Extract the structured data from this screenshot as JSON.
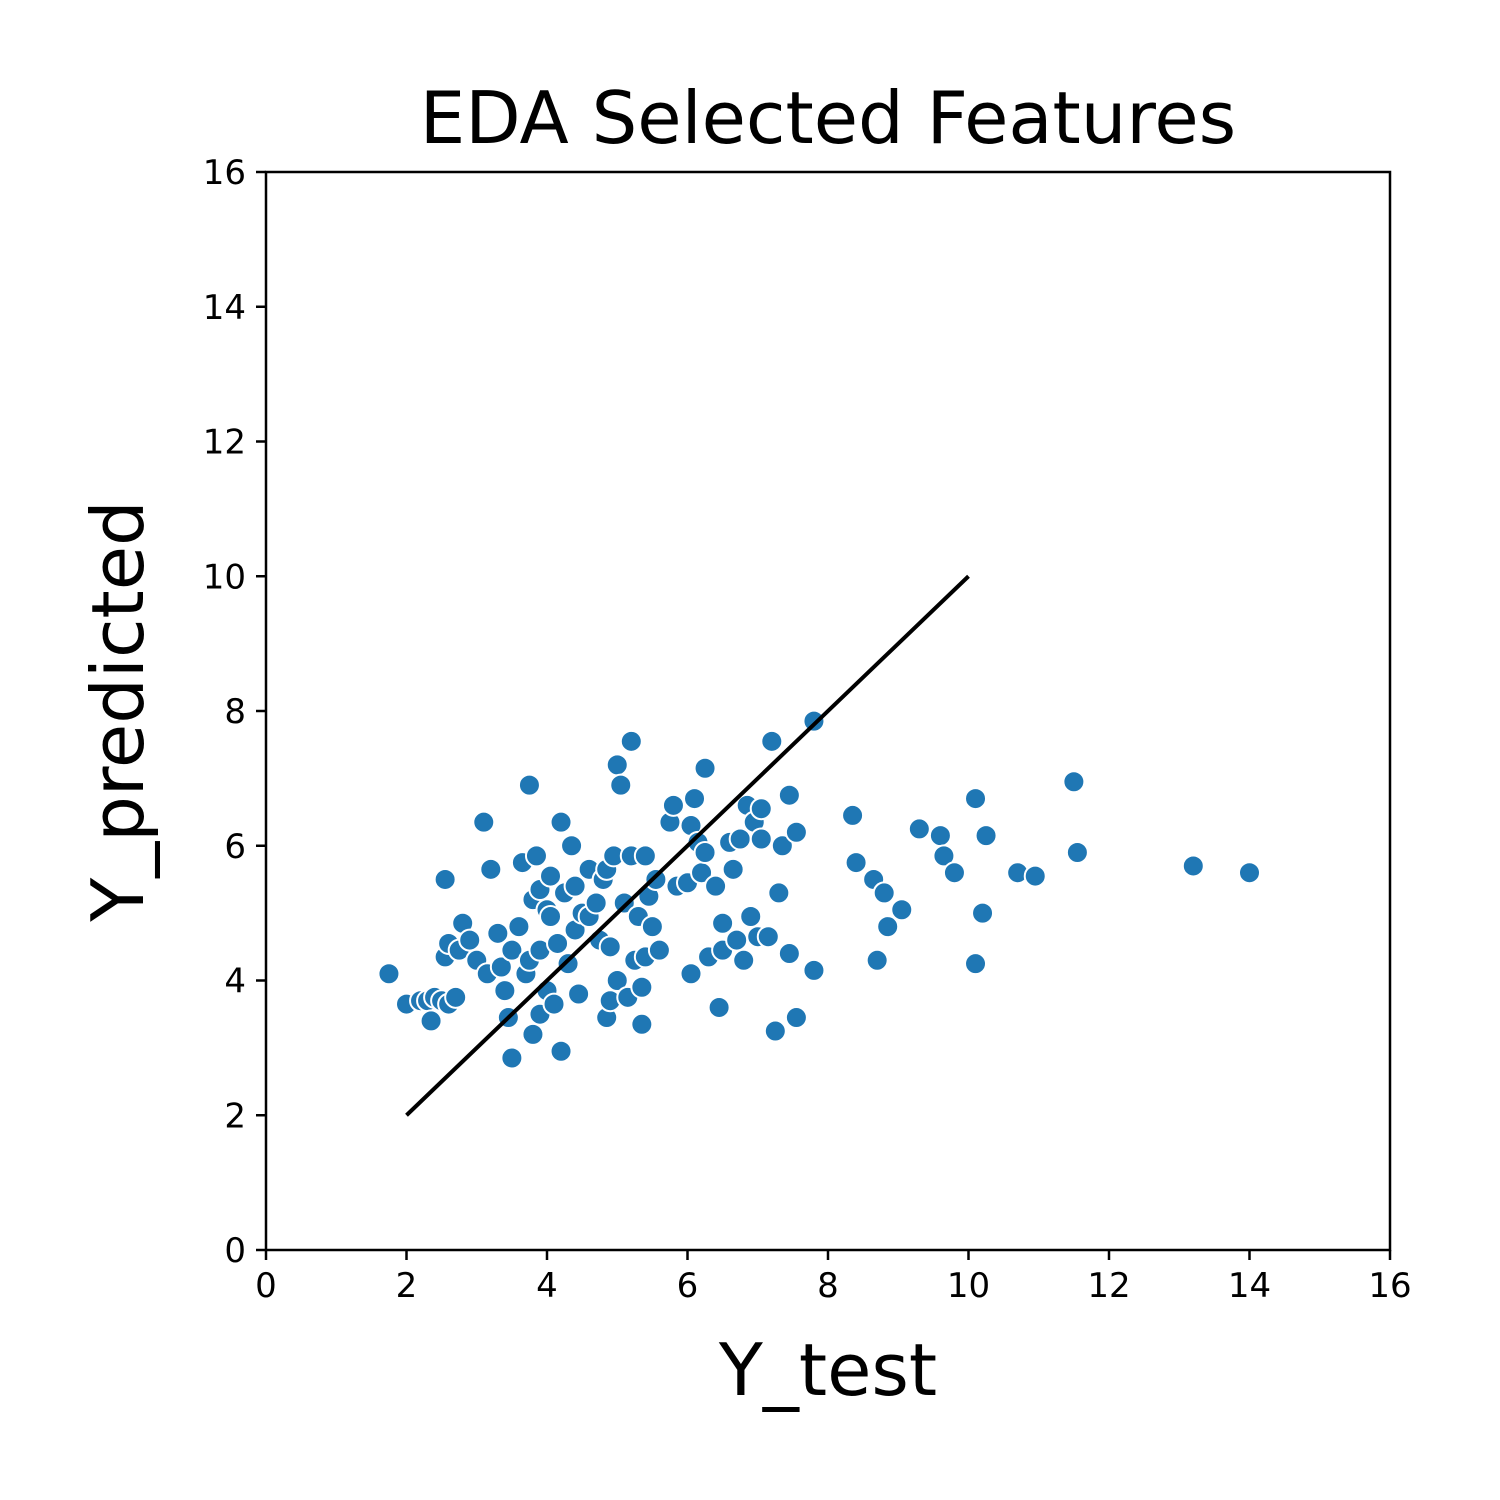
{
  "chart_data": {
    "type": "scatter",
    "title": "EDA Selected Features",
    "xlabel": "Y_test",
    "ylabel": "Y_predicted",
    "xlim": [
      0,
      16
    ],
    "ylim": [
      0,
      16
    ],
    "xticks": [
      "0",
      "2",
      "4",
      "6",
      "8",
      "10",
      "12",
      "14",
      "16"
    ],
    "yticks": [
      "0",
      "2",
      "4",
      "6",
      "8",
      "10",
      "12",
      "14",
      "16"
    ],
    "grid": false,
    "point_color": "#1f77b4",
    "reference_line": {
      "x": [
        2,
        10
      ],
      "y": [
        2,
        10
      ],
      "color": "#000000"
    },
    "points": [
      [
        1.75,
        4.1
      ],
      [
        2.0,
        3.65
      ],
      [
        2.2,
        3.7
      ],
      [
        2.3,
        3.7
      ],
      [
        2.35,
        3.4
      ],
      [
        2.4,
        3.75
      ],
      [
        2.5,
        3.7
      ],
      [
        2.55,
        5.5
      ],
      [
        2.55,
        4.35
      ],
      [
        2.6,
        3.65
      ],
      [
        2.6,
        4.55
      ],
      [
        2.7,
        3.75
      ],
      [
        2.75,
        4.45
      ],
      [
        2.8,
        4.85
      ],
      [
        2.9,
        4.6
      ],
      [
        3.0,
        4.3
      ],
      [
        3.1,
        6.35
      ],
      [
        3.15,
        4.1
      ],
      [
        3.2,
        5.65
      ],
      [
        3.3,
        4.7
      ],
      [
        3.35,
        4.2
      ],
      [
        3.4,
        3.85
      ],
      [
        3.45,
        3.45
      ],
      [
        3.5,
        4.45
      ],
      [
        3.5,
        2.85
      ],
      [
        3.6,
        4.8
      ],
      [
        3.65,
        5.75
      ],
      [
        3.7,
        4.1
      ],
      [
        3.75,
        4.3
      ],
      [
        3.75,
        6.9
      ],
      [
        3.8,
        3.2
      ],
      [
        3.8,
        5.2
      ],
      [
        3.85,
        5.85
      ],
      [
        3.9,
        3.5
      ],
      [
        3.9,
        4.45
      ],
      [
        3.9,
        5.35
      ],
      [
        4.0,
        3.85
      ],
      [
        4.0,
        5.05
      ],
      [
        4.05,
        4.95
      ],
      [
        4.05,
        5.55
      ],
      [
        4.1,
        3.65
      ],
      [
        4.15,
        4.55
      ],
      [
        4.2,
        6.35
      ],
      [
        4.2,
        2.95
      ],
      [
        4.25,
        5.3
      ],
      [
        4.3,
        4.25
      ],
      [
        4.35,
        6.0
      ],
      [
        4.4,
        4.75
      ],
      [
        4.4,
        5.4
      ],
      [
        4.45,
        3.8
      ],
      [
        4.5,
        5.0
      ],
      [
        4.6,
        4.95
      ],
      [
        4.6,
        5.65
      ],
      [
        4.7,
        5.15
      ],
      [
        4.75,
        4.6
      ],
      [
        4.8,
        5.5
      ],
      [
        4.85,
        5.65
      ],
      [
        4.85,
        3.45
      ],
      [
        4.9,
        4.5
      ],
      [
        4.9,
        3.7
      ],
      [
        4.95,
        5.85
      ],
      [
        5.0,
        7.2
      ],
      [
        5.0,
        4.0
      ],
      [
        5.05,
        6.9
      ],
      [
        5.1,
        5.15
      ],
      [
        5.15,
        3.75
      ],
      [
        5.2,
        7.55
      ],
      [
        5.2,
        5.85
      ],
      [
        5.25,
        4.3
      ],
      [
        5.3,
        4.95
      ],
      [
        5.35,
        3.35
      ],
      [
        5.35,
        3.9
      ],
      [
        5.4,
        5.85
      ],
      [
        5.4,
        4.35
      ],
      [
        5.45,
        5.25
      ],
      [
        5.5,
        4.8
      ],
      [
        5.55,
        5.5
      ],
      [
        5.6,
        4.45
      ],
      [
        5.75,
        6.35
      ],
      [
        5.8,
        6.6
      ],
      [
        5.85,
        5.4
      ],
      [
        6.0,
        5.45
      ],
      [
        6.05,
        6.3
      ],
      [
        6.05,
        4.1
      ],
      [
        6.1,
        6.7
      ],
      [
        6.15,
        6.05
      ],
      [
        6.2,
        5.6
      ],
      [
        6.25,
        7.15
      ],
      [
        6.25,
        5.9
      ],
      [
        6.3,
        4.35
      ],
      [
        6.4,
        5.4
      ],
      [
        6.45,
        3.6
      ],
      [
        6.5,
        4.45
      ],
      [
        6.5,
        4.85
      ],
      [
        6.6,
        6.05
      ],
      [
        6.65,
        5.65
      ],
      [
        6.7,
        4.6
      ],
      [
        6.75,
        6.1
      ],
      [
        6.8,
        4.3
      ],
      [
        6.85,
        6.6
      ],
      [
        6.9,
        4.95
      ],
      [
        6.95,
        6.35
      ],
      [
        7.0,
        4.65
      ],
      [
        7.05,
        6.1
      ],
      [
        7.05,
        6.55
      ],
      [
        7.15,
        4.65
      ],
      [
        7.2,
        7.55
      ],
      [
        7.25,
        3.25
      ],
      [
        7.3,
        5.3
      ],
      [
        7.35,
        6.0
      ],
      [
        7.45,
        4.4
      ],
      [
        7.45,
        6.75
      ],
      [
        7.55,
        3.45
      ],
      [
        7.55,
        6.2
      ],
      [
        7.8,
        4.15
      ],
      [
        7.8,
        7.85
      ],
      [
        8.35,
        6.45
      ],
      [
        8.4,
        5.75
      ],
      [
        8.65,
        5.5
      ],
      [
        8.7,
        4.3
      ],
      [
        8.8,
        5.3
      ],
      [
        8.85,
        4.8
      ],
      [
        9.05,
        5.05
      ],
      [
        9.3,
        6.25
      ],
      [
        9.6,
        6.15
      ],
      [
        9.65,
        5.85
      ],
      [
        9.8,
        5.6
      ],
      [
        10.1,
        6.7
      ],
      [
        10.1,
        4.25
      ],
      [
        10.2,
        5.0
      ],
      [
        10.25,
        6.15
      ],
      [
        10.7,
        5.6
      ],
      [
        10.95,
        5.55
      ],
      [
        11.5,
        6.95
      ],
      [
        11.55,
        5.9
      ],
      [
        13.2,
        5.7
      ],
      [
        14.0,
        5.6
      ]
    ]
  }
}
